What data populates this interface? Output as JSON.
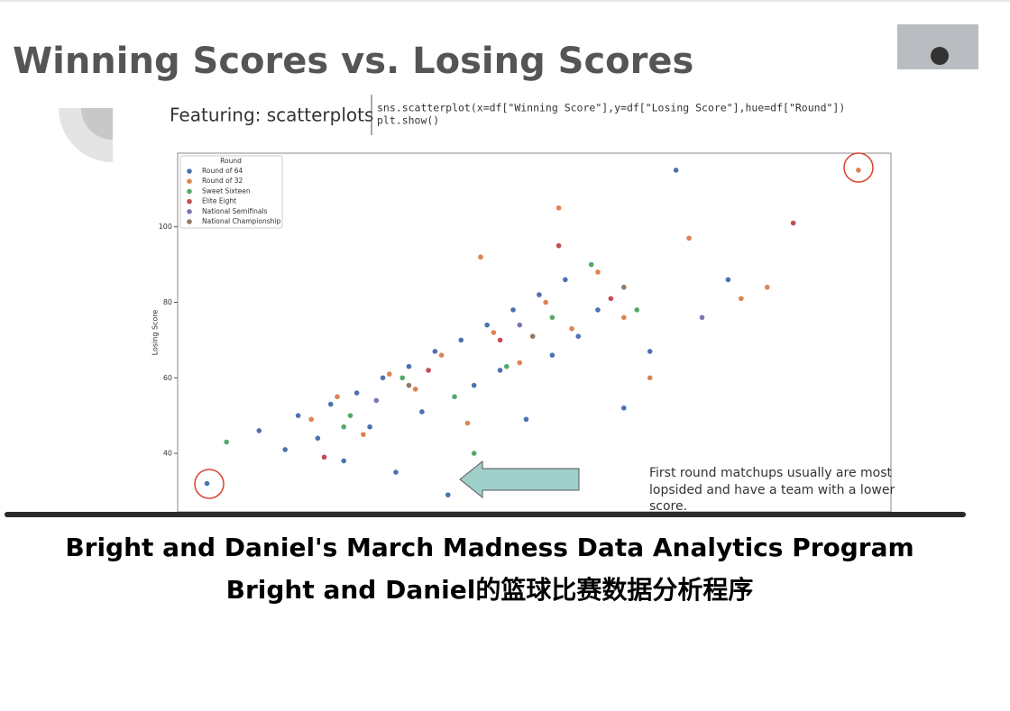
{
  "slide": {
    "title": "Winning Scores vs. Losing Scores",
    "subtitle": "Featuring: scatterplots",
    "code": [
      "sns.scatterplot(x=df[\"Winning Score\"],y=df[\"Losing Score\"],hue=df[\"Round\"])",
      "plt.show()"
    ],
    "annotation": [
      "First round matchups usually are most",
      "lopsided and have a team with a lower",
      "score."
    ]
  },
  "chart_data": {
    "type": "scatter",
    "ylabel": "Losing Score",
    "legend_title": "Round",
    "legend_position": "upper left",
    "grid": false,
    "xlim": [
      39.5,
      149
    ],
    "ylim": [
      24.5,
      119.5
    ],
    "yticks": [
      40,
      60,
      80,
      100
    ],
    "series": [
      {
        "name": "Round of 64",
        "color": "#4c72b0",
        "x": [
          44,
          52,
          56,
          58,
          61,
          63,
          65,
          67,
          69,
          71,
          73,
          75,
          77,
          79,
          81,
          83,
          85,
          87,
          89,
          91,
          93,
          95,
          97,
          99,
          101,
          104,
          108,
          112,
          116,
          124
        ],
        "values": [
          32,
          46,
          41,
          50,
          44,
          53,
          38,
          56,
          47,
          60,
          35,
          63,
          51,
          67,
          29,
          70,
          58,
          74,
          62,
          78,
          49,
          82,
          66,
          86,
          71,
          78,
          52,
          67,
          115,
          86
        ]
      },
      {
        "name": "Round of 32",
        "color": "#dd8452",
        "x": [
          60,
          64,
          68,
          72,
          76,
          80,
          84,
          88,
          92,
          96,
          100,
          104,
          108,
          112,
          118,
          126,
          130,
          144,
          98,
          86
        ],
        "values": [
          49,
          55,
          45,
          61,
          57,
          66,
          48,
          72,
          64,
          80,
          73,
          88,
          76,
          60,
          97,
          81,
          84,
          115,
          105,
          92
        ]
      },
      {
        "name": "Sweet Sixteen",
        "color": "#55a868",
        "x": [
          47,
          66,
          74,
          82,
          90,
          97,
          103,
          110,
          65,
          85
        ],
        "values": [
          43,
          50,
          60,
          55,
          63,
          76,
          90,
          78,
          47,
          40
        ]
      },
      {
        "name": "Elite Eight",
        "color": "#c44e52",
        "x": [
          62,
          78,
          89,
          98,
          106,
          134
        ],
        "values": [
          39,
          62,
          70,
          95,
          81,
          101
        ]
      },
      {
        "name": "National Semifinals",
        "color": "#8172b3",
        "x": [
          70,
          92,
          120
        ],
        "values": [
          54,
          74,
          76
        ]
      },
      {
        "name": "National Championship",
        "color": "#937860",
        "x": [
          75,
          94,
          108
        ],
        "values": [
          58,
          71,
          84
        ]
      }
    ]
  },
  "caption": [
    "Bright and Daniel's March Madness Data Analytics Program",
    "Bright and Daniel的篮球比赛数据分析程序"
  ]
}
